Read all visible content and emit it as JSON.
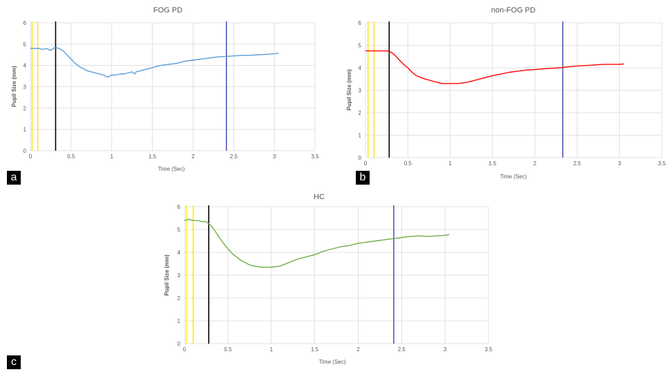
{
  "chart_data": [
    {
      "panel": "a",
      "type": "line",
      "title": "FOG PD",
      "xlabel": "Time (Sec)",
      "ylabel": "Pupil Size (mm)",
      "xlim": [
        0,
        3.5
      ],
      "ylim": [
        0,
        6
      ],
      "xticks": [
        "0",
        "0.5",
        "1",
        "1.5",
        "2",
        "2.5",
        "3",
        "3.5"
      ],
      "yticks": [
        "0",
        "1",
        "2",
        "3",
        "4",
        "5",
        "6"
      ],
      "grid": true,
      "series_color": "#5b9bd5",
      "series": [
        {
          "x": [
            0,
            0.05,
            0.1,
            0.15,
            0.2,
            0.25,
            0.3,
            0.35,
            0.4,
            0.45,
            0.5,
            0.55,
            0.6,
            0.65,
            0.7,
            0.75,
            0.8,
            0.85,
            0.9,
            0.95,
            1.0,
            1.05,
            1.1,
            1.15,
            1.2,
            1.25,
            1.28,
            1.3,
            1.35,
            1.4,
            1.5,
            1.6,
            1.7,
            1.8,
            1.9,
            2.0,
            2.1,
            2.2,
            2.3,
            2.4,
            2.5,
            2.6,
            2.7,
            2.8,
            2.9,
            3.0,
            3.05
          ],
          "y": [
            4.8,
            4.8,
            4.8,
            4.75,
            4.8,
            4.7,
            4.85,
            4.8,
            4.7,
            4.5,
            4.3,
            4.1,
            3.95,
            3.85,
            3.75,
            3.7,
            3.65,
            3.6,
            3.55,
            3.45,
            3.55,
            3.55,
            3.6,
            3.6,
            3.65,
            3.7,
            3.6,
            3.7,
            3.75,
            3.8,
            3.9,
            4.0,
            4.05,
            4.1,
            4.2,
            4.25,
            4.3,
            4.35,
            4.4,
            4.42,
            4.45,
            4.47,
            4.48,
            4.5,
            4.52,
            4.55,
            4.57
          ]
        }
      ],
      "vlines": [
        {
          "x": 0.02,
          "color": "#ffe600"
        },
        {
          "x": 0.09,
          "color": "#ffe600"
        },
        {
          "x": 0.31,
          "color": "#000000"
        },
        {
          "x": 2.41,
          "color": "#3a3fa8"
        }
      ]
    },
    {
      "panel": "b",
      "type": "line",
      "title": "non-FOG PD",
      "xlabel": "Time (Sec)",
      "ylabel": "Pupil Size (mm)",
      "xlim": [
        0,
        3.5
      ],
      "ylim": [
        0,
        6
      ],
      "xticks": [
        "0",
        "0.5",
        "1",
        "1.5",
        "2",
        "2.5",
        "3",
        "3.5"
      ],
      "yticks": [
        "0",
        "1",
        "2",
        "3",
        "4",
        "5",
        "6"
      ],
      "grid": true,
      "series_color": "#ff0000",
      "series": [
        {
          "x": [
            0,
            0.1,
            0.2,
            0.25,
            0.3,
            0.35,
            0.4,
            0.45,
            0.5,
            0.55,
            0.6,
            0.7,
            0.8,
            0.9,
            1.0,
            1.1,
            1.2,
            1.3,
            1.4,
            1.5,
            1.6,
            1.7,
            1.8,
            1.9,
            2.0,
            2.1,
            2.2,
            2.3,
            2.4,
            2.5,
            2.6,
            2.7,
            2.8,
            2.9,
            3.0,
            3.05
          ],
          "y": [
            4.75,
            4.75,
            4.75,
            4.75,
            4.7,
            4.55,
            4.35,
            4.15,
            4.0,
            3.8,
            3.65,
            3.5,
            3.4,
            3.3,
            3.3,
            3.3,
            3.35,
            3.45,
            3.55,
            3.65,
            3.72,
            3.8,
            3.85,
            3.9,
            3.92,
            3.95,
            3.98,
            4.0,
            4.05,
            4.08,
            4.1,
            4.12,
            4.15,
            4.15,
            4.15,
            4.17
          ]
        }
      ],
      "vlines": [
        {
          "x": 0.03,
          "color": "#ffe600"
        },
        {
          "x": 0.1,
          "color": "#ffe600"
        },
        {
          "x": 0.28,
          "color": "#000000"
        },
        {
          "x": 2.33,
          "color": "#3a3fa8"
        }
      ]
    },
    {
      "panel": "c",
      "type": "line",
      "title": "HC",
      "xlabel": "Time (Sec)",
      "ylabel": "Pupil Size (mm)",
      "xlim": [
        0,
        3.5
      ],
      "ylim": [
        0,
        6
      ],
      "xticks": [
        "0",
        "0.5",
        "1",
        "1.5",
        "2",
        "2.5",
        "3",
        "3.5"
      ],
      "yticks": [
        "0",
        "1",
        "2",
        "3",
        "4",
        "5",
        "6"
      ],
      "grid": true,
      "series_color": "#70ad47",
      "series": [
        {
          "x": [
            0,
            0.05,
            0.1,
            0.15,
            0.2,
            0.25,
            0.3,
            0.35,
            0.4,
            0.45,
            0.5,
            0.55,
            0.6,
            0.65,
            0.7,
            0.75,
            0.8,
            0.9,
            1.0,
            1.1,
            1.2,
            1.3,
            1.4,
            1.5,
            1.6,
            1.7,
            1.8,
            1.9,
            2.0,
            2.1,
            2.2,
            2.3,
            2.4,
            2.5,
            2.6,
            2.7,
            2.8,
            2.9,
            3.0,
            3.05
          ],
          "y": [
            5.4,
            5.45,
            5.4,
            5.4,
            5.35,
            5.35,
            5.2,
            4.95,
            4.65,
            4.4,
            4.15,
            3.95,
            3.8,
            3.65,
            3.55,
            3.45,
            3.4,
            3.35,
            3.35,
            3.4,
            3.55,
            3.7,
            3.8,
            3.9,
            4.05,
            4.15,
            4.25,
            4.3,
            4.4,
            4.45,
            4.5,
            4.55,
            4.6,
            4.65,
            4.7,
            4.72,
            4.7,
            4.72,
            4.75,
            4.78
          ]
        }
      ],
      "vlines": [
        {
          "x": 0.02,
          "color": "#ffe600"
        },
        {
          "x": 0.1,
          "color": "#ffe600"
        },
        {
          "x": 0.28,
          "color": "#000000"
        },
        {
          "x": 2.41,
          "color": "#3a3fa8"
        }
      ]
    }
  ]
}
